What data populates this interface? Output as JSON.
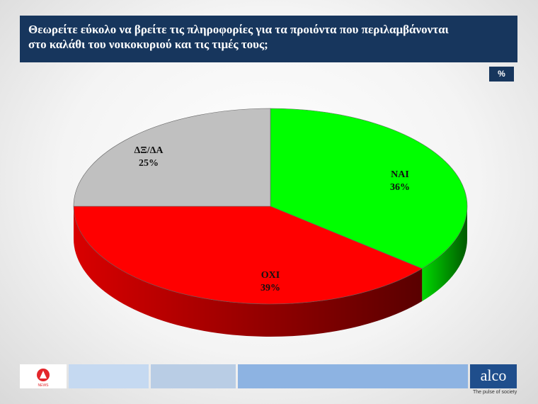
{
  "title": {
    "line1": "Θεωρείτε εύκολο να βρείτε  τις πληροφορίες για τα προιόντα που περιλαμβάνονται",
    "line2": "στο καλάθι του νοικοκυριού και τις τιμές τους;"
  },
  "unit_badge": "%",
  "chart_data": {
    "type": "pie",
    "title": "Θεωρείτε εύκολο να βρείτε  τις πληροφορίες για τα προιόντα που περιλαμβάνονται στο καλάθι του νοικοκυριού και τις τιμές τους;",
    "unit": "%",
    "three_d": true,
    "slices": [
      {
        "label": "ΝΑΙ",
        "value": 36,
        "value_label": "36%",
        "color": "#00ff00"
      },
      {
        "label": "ΟΧΙ",
        "value": 39,
        "value_label": "39%",
        "color": "#ff0000"
      },
      {
        "label": "ΔΞ/ΔΑ",
        "value": 25,
        "value_label": "25%",
        "color": "#c0c0c0"
      }
    ]
  },
  "footer": {
    "logo_left_text": "NEWS",
    "brand": "alco",
    "tagline": "The pulse of society",
    "strip_colors": [
      "#c5d9f1",
      "#b9cde5",
      "#8db3e2"
    ]
  }
}
